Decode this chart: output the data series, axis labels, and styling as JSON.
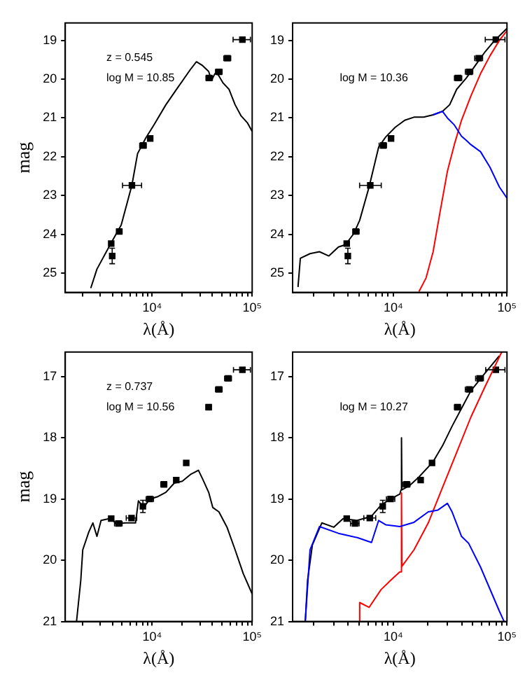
{
  "chart_data": [
    {
      "type": "line",
      "xlabel": "λ(Å)",
      "ylabel": "mag",
      "log": "x",
      "grid": false,
      "annotations": [
        "z = 0.545",
        "log M = 10.85"
      ],
      "xlim": [
        1350,
        100000
      ],
      "ylim": [
        25.5,
        18.55
      ],
      "xticks": [
        {
          "value": 2000,
          "label": null
        },
        {
          "value": 3000,
          "label": null
        },
        {
          "value": 4000,
          "label": null
        },
        {
          "value": 5000,
          "label": null
        },
        {
          "value": 6000,
          "label": null
        },
        {
          "value": 7000,
          "label": null
        },
        {
          "value": 8000,
          "label": null
        },
        {
          "value": 9000,
          "label": null
        },
        {
          "value": 10000,
          "label": "10⁴"
        },
        {
          "value": 20000,
          "label": null
        },
        {
          "value": 30000,
          "label": null
        },
        {
          "value": 40000,
          "label": null
        },
        {
          "value": 50000,
          "label": null
        },
        {
          "value": 60000,
          "label": null
        },
        {
          "value": 70000,
          "label": null
        },
        {
          "value": 80000,
          "label": null
        },
        {
          "value": 90000,
          "label": null
        },
        {
          "value": 100000,
          "label": "10⁵"
        }
      ],
      "yticks": [
        19,
        20,
        21,
        22,
        23,
        24,
        25
      ],
      "series": [
        {
          "type": "line",
          "color": "#000000",
          "x": [
            2430,
            2800,
            3890,
            4900,
            6270,
            7140,
            8610,
            10400,
            13700,
            18200,
            24100,
            27700,
            31900,
            36700,
            39200,
            42300,
            45600,
            50900,
            58600,
            67500,
            77600,
            89300,
            100000
          ],
          "values": [
            25.39,
            24.9,
            24.22,
            23.76,
            22.73,
            21.92,
            21.52,
            21.18,
            20.66,
            20.2,
            19.75,
            19.55,
            19.65,
            19.8,
            20.03,
            19.86,
            19.88,
            20.09,
            20.26,
            20.66,
            20.95,
            21.12,
            21.35
          ]
        },
        {
          "type": "scatter",
          "color": "#000000",
          "marker": "square",
          "x": [
            3890,
            3980,
            4680,
            6270,
            8150,
            9550,
            37100,
            46500,
            56500,
            79800
          ],
          "values": [
            24.24,
            24.56,
            23.93,
            22.74,
            21.71,
            21.53,
            19.97,
            19.81,
            19.46,
            18.98
          ],
          "errors": [
            null,
            0.2,
            null,
            null,
            null,
            null,
            null,
            null,
            null,
            null
          ],
          "xerrors": [
            null,
            null,
            [
              4400,
              5000
            ],
            [
              5050,
              7830
            ],
            [
              7500,
              8700
            ],
            null,
            [
              34500,
              40000
            ],
            [
              43000,
              50000
            ],
            [
              52000,
              61000
            ],
            [
              64400,
              96000
            ]
          ]
        }
      ]
    },
    {
      "type": "line",
      "xlabel": "λ(Å)",
      "log": "x",
      "grid": false,
      "annotations": [
        "log M = 10.36"
      ],
      "xlim": [
        1300,
        100000
      ],
      "ylim": [
        25.5,
        18.55
      ],
      "xticks": [
        {
          "value": 2000,
          "label": null
        },
        {
          "value": 3000,
          "label": null
        },
        {
          "value": 4000,
          "label": null
        },
        {
          "value": 5000,
          "label": null
        },
        {
          "value": 6000,
          "label": null
        },
        {
          "value": 7000,
          "label": null
        },
        {
          "value": 8000,
          "label": null
        },
        {
          "value": 9000,
          "label": null
        },
        {
          "value": 10000,
          "label": "10⁴"
        },
        {
          "value": 20000,
          "label": null
        },
        {
          "value": 30000,
          "label": null
        },
        {
          "value": 40000,
          "label": null
        },
        {
          "value": 50000,
          "label": null
        },
        {
          "value": 60000,
          "label": null
        },
        {
          "value": 70000,
          "label": null
        },
        {
          "value": 80000,
          "label": null
        },
        {
          "value": 90000,
          "label": null
        },
        {
          "value": 100000,
          "label": "10⁵"
        }
      ],
      "yticks": [
        19,
        20,
        21,
        22,
        23,
        24,
        25
      ],
      "series": [
        {
          "type": "line",
          "color": "#0000ff",
          "x": [
            22400,
            27100,
            29900,
            34400,
            39800,
            43900,
            48200,
            58500,
            70800,
            85700,
            100000
          ],
          "values": [
            20.92,
            20.83,
            21.0,
            21.18,
            21.47,
            21.58,
            21.69,
            21.87,
            22.27,
            22.78,
            23.07
          ]
        },
        {
          "type": "line",
          "color": "#ff0000",
          "x": [
            16800,
            19400,
            22400,
            25800,
            29900,
            34400,
            39800,
            48200,
            58500,
            70800,
            85700,
            100000
          ],
          "values": [
            25.48,
            25.13,
            24.45,
            23.42,
            22.38,
            21.69,
            21.06,
            20.43,
            19.86,
            19.4,
            19.0,
            18.75
          ]
        },
        {
          "type": "line",
          "color": "#000000",
          "x": [
            1450,
            1520,
            1850,
            2240,
            2710,
            3290,
            3790,
            4470,
            5060,
            6120,
            7430,
            8570,
            10400,
            12600,
            15200,
            18500,
            22400,
            27100,
            31300,
            36100,
            43900,
            53100,
            64300,
            78000,
            100000
          ],
          "values": [
            25.36,
            24.62,
            24.5,
            24.45,
            24.56,
            24.33,
            24.27,
            23.99,
            23.64,
            22.78,
            21.75,
            21.49,
            21.24,
            21.06,
            20.98,
            20.98,
            20.92,
            20.83,
            20.66,
            20.26,
            19.97,
            19.63,
            19.29,
            19.0,
            18.69
          ]
        },
        {
          "type": "scatter",
          "color": "#000000",
          "marker": "square",
          "x": [
            3890,
            3980,
            4680,
            6270,
            8150,
            9550,
            37100,
            46500,
            56500,
            79800
          ],
          "values": [
            24.24,
            24.56,
            23.93,
            22.74,
            21.71,
            21.53,
            19.97,
            19.81,
            19.46,
            18.98
          ],
          "errors": [
            null,
            0.2,
            null,
            null,
            null,
            null,
            null,
            null,
            null,
            null
          ],
          "xerrors": [
            null,
            null,
            [
              4400,
              5000
            ],
            [
              5050,
              7830
            ],
            [
              7500,
              8700
            ],
            null,
            [
              34500,
              40000
            ],
            [
              43000,
              50000
            ],
            [
              52000,
              61000
            ],
            [
              64400,
              96000
            ]
          ]
        }
      ]
    },
    {
      "type": "line",
      "xlabel": "λ(Å)",
      "ylabel": "mag",
      "log": "x",
      "grid": false,
      "annotations": [
        "z = 0.737",
        "log M = 10.56"
      ],
      "xlim": [
        1350,
        100000
      ],
      "ylim": [
        21,
        16.6
      ],
      "xticks": [
        {
          "value": 2000,
          "label": null
        },
        {
          "value": 3000,
          "label": null
        },
        {
          "value": 4000,
          "label": null
        },
        {
          "value": 5000,
          "label": null
        },
        {
          "value": 6000,
          "label": null
        },
        {
          "value": 7000,
          "label": null
        },
        {
          "value": 8000,
          "label": null
        },
        {
          "value": 9000,
          "label": null
        },
        {
          "value": 10000,
          "label": "10⁴"
        },
        {
          "value": 20000,
          "label": null
        },
        {
          "value": 30000,
          "label": null
        },
        {
          "value": 40000,
          "label": null
        },
        {
          "value": 50000,
          "label": null
        },
        {
          "value": 60000,
          "label": null
        },
        {
          "value": 70000,
          "label": null
        },
        {
          "value": 80000,
          "label": null
        },
        {
          "value": 90000,
          "label": null
        },
        {
          "value": 100000,
          "label": "10⁵"
        }
      ],
      "yticks": [
        17,
        18,
        19,
        20,
        21
      ],
      "series": [
        {
          "type": "line",
          "color": "#000000",
          "x": [
            1750,
            1930,
            2020,
            2320,
            2550,
            2800,
            3080,
            3710,
            4470,
            5400,
            6810,
            7280,
            8220,
            9460,
            11400,
            13700,
            16600,
            20000,
            24100,
            29000,
            31900,
            36700,
            40400,
            46500,
            56000,
            67500,
            81500,
            100000
          ],
          "values": [
            21,
            20.33,
            19.83,
            19.54,
            19.39,
            19.61,
            19.35,
            19.32,
            19.4,
            19.39,
            19.39,
            19.03,
            19.14,
            19.0,
            18.96,
            18.89,
            18.74,
            18.71,
            18.6,
            18.53,
            18.67,
            18.89,
            19.14,
            19.21,
            19.46,
            19.83,
            20.22,
            20.55
          ]
        },
        {
          "type": "scatter",
          "color": "#000000",
          "marker": "square",
          "x": [
            3890,
            4600,
            6210,
            8070,
            9460,
            13100,
            17400,
            21900,
            36700,
            46500,
            57500,
            79800
          ],
          "values": [
            19.32,
            19.4,
            19.31,
            19.12,
            19.0,
            18.76,
            18.69,
            18.41,
            17.5,
            17.21,
            17.03,
            16.89
          ],
          "errors": [
            null,
            null,
            null,
            0.1,
            null,
            null,
            null,
            null,
            null,
            null,
            null,
            null
          ],
          "xerrors": [
            null,
            [
              4200,
              5000
            ],
            [
              5500,
              7000
            ],
            null,
            [
              8700,
              10300
            ],
            [
              12200,
              14000
            ],
            null,
            null,
            [
              34500,
              39000
            ],
            [
              43000,
              50000
            ],
            [
              53000,
              62000
            ],
            [
              65000,
              96000
            ]
          ]
        }
      ]
    },
    {
      "type": "line",
      "xlabel": "λ(Å)",
      "log": "x",
      "grid": false,
      "annotations": [
        "log M = 10.27"
      ],
      "xlim": [
        1300,
        100000
      ],
      "ylim": [
        21,
        16.6
      ],
      "xticks": [
        {
          "value": 2000,
          "label": null
        },
        {
          "value": 3000,
          "label": null
        },
        {
          "value": 4000,
          "label": null
        },
        {
          "value": 5000,
          "label": null
        },
        {
          "value": 6000,
          "label": null
        },
        {
          "value": 7000,
          "label": null
        },
        {
          "value": 8000,
          "label": null
        },
        {
          "value": 9000,
          "label": null
        },
        {
          "value": 10000,
          "label": "10⁴"
        },
        {
          "value": 20000,
          "label": null
        },
        {
          "value": 30000,
          "label": null
        },
        {
          "value": 40000,
          "label": null
        },
        {
          "value": 50000,
          "label": null
        },
        {
          "value": 60000,
          "label": null
        },
        {
          "value": 70000,
          "label": null
        },
        {
          "value": 80000,
          "label": null
        },
        {
          "value": 90000,
          "label": null
        },
        {
          "value": 100000,
          "label": "10⁵"
        }
      ],
      "yticks": [
        17,
        18,
        19,
        20,
        21
      ],
      "series": [
        {
          "type": "line",
          "color": "#0000ff",
          "x": [
            1680,
            1850,
            2240,
            3290,
            4820,
            6430,
            7430,
            8570,
            11400,
            15200,
            20300,
            24700,
            29900,
            32900,
            39800,
            45900,
            58500,
            70800,
            85700,
            94400
          ],
          "values": [
            21,
            19.83,
            19.45,
            19.56,
            19.63,
            19.71,
            19.35,
            19.42,
            19.45,
            19.38,
            19.21,
            19.18,
            19.07,
            19.21,
            19.61,
            19.72,
            20.11,
            20.47,
            20.83,
            21
          ]
        },
        {
          "type": "line",
          "color": "#ff0000",
          "x": [
            5010,
            5060,
            6120,
            7800,
            9440,
            11400,
            11700,
            11800,
            11900,
            15200,
            20300,
            27100,
            36100,
            48200,
            64300,
            89900
          ],
          "values": [
            21,
            20.69,
            20.77,
            20.48,
            20.33,
            20.19,
            20.19,
            18.9,
            20.1,
            19.83,
            19.39,
            18.81,
            18.24,
            17.66,
            17.16,
            16.6
          ]
        },
        {
          "type": "line",
          "color": "#000000",
          "x": [
            1680,
            1760,
            1940,
            2350,
            2990,
            3610,
            4820,
            6430,
            7800,
            9440,
            11400,
            11700,
            11800,
            11900,
            13900,
            16800,
            22400,
            27100,
            32900,
            39800,
            48200,
            64300,
            85700
          ],
          "values": [
            21,
            20.33,
            19.75,
            19.39,
            19.46,
            19.32,
            19.35,
            19.28,
            19.1,
            19.0,
            18.92,
            18.85,
            18.0,
            18.85,
            18.78,
            18.64,
            18.39,
            18.13,
            17.81,
            17.52,
            17.23,
            16.94,
            16.66
          ]
        },
        {
          "type": "scatter",
          "color": "#000000",
          "marker": "square",
          "x": [
            3890,
            4600,
            6210,
            8070,
            9460,
            13100,
            17400,
            21900,
            36700,
            46500,
            57500,
            79800
          ],
          "values": [
            19.32,
            19.4,
            19.31,
            19.12,
            19.0,
            18.76,
            18.69,
            18.41,
            17.5,
            17.21,
            17.03,
            16.89
          ],
          "errors": [
            null,
            null,
            null,
            0.1,
            null,
            null,
            null,
            null,
            null,
            null,
            null,
            null
          ],
          "xerrors": [
            null,
            [
              4200,
              5000
            ],
            [
              5500,
              7000
            ],
            null,
            [
              8700,
              10300
            ],
            [
              12200,
              14000
            ],
            null,
            null,
            [
              34500,
              39000
            ],
            [
              43000,
              50000
            ],
            [
              53000,
              62000
            ],
            [
              65000,
              96000
            ]
          ]
        }
      ]
    }
  ]
}
